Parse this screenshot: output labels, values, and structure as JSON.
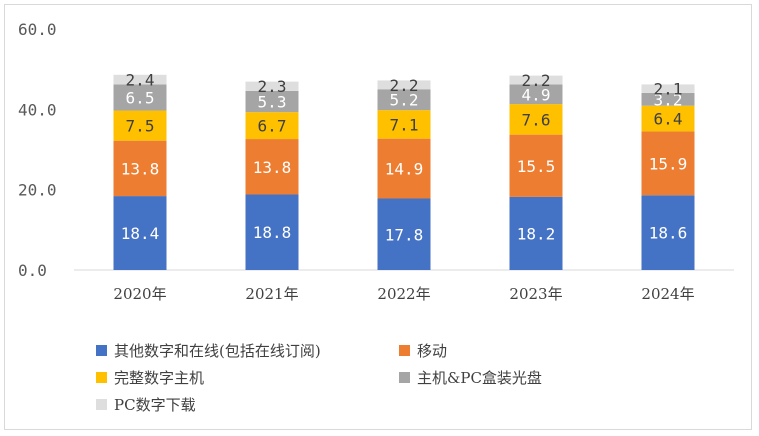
{
  "chart_data": {
    "type": "bar",
    "stacked": true,
    "categories": [
      "2020年",
      "2021年",
      "2022年",
      "2023年",
      "2024年"
    ],
    "ylim": [
      0,
      60
    ],
    "yticks": [
      "0.0",
      "20.0",
      "40.0",
      "60.0"
    ],
    "grid": false,
    "legend_position": "bottom",
    "series": [
      {
        "name": "其他数字和在线(包括在线订阅)",
        "color": "#4472c4",
        "values": [
          18.4,
          18.8,
          17.8,
          18.2,
          18.6
        ]
      },
      {
        "name": "移动",
        "color": "#ed7d31",
        "values": [
          13.8,
          13.8,
          14.9,
          15.5,
          15.9
        ]
      },
      {
        "name": "完整数字主机",
        "color": "#ffc000",
        "values": [
          7.5,
          6.7,
          7.1,
          7.6,
          6.4
        ]
      },
      {
        "name": "主机&PC盒装光盘",
        "color": "#a5a5a5",
        "values": [
          6.5,
          5.3,
          5.2,
          4.9,
          3.2
        ]
      },
      {
        "name": "PC数字下载",
        "color": "#dedede",
        "values": [
          2.4,
          2.3,
          2.2,
          2.2,
          2.1
        ]
      }
    ]
  }
}
